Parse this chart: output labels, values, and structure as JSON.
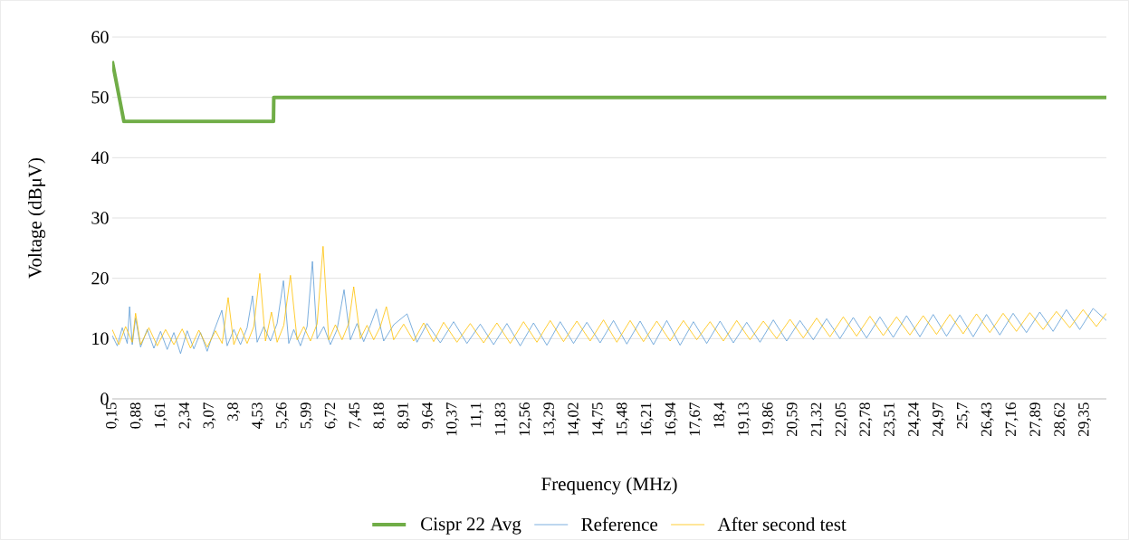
{
  "chart_data": {
    "type": "line",
    "xlabel": "Frequency (MHz)",
    "ylabel": "Voltage (dBμV)",
    "xlim": [
      0.15,
      30
    ],
    "ylim": [
      0,
      60
    ],
    "yticks": [
      0,
      10,
      20,
      30,
      40,
      50,
      60
    ],
    "xticks": [
      {
        "value": 0.15,
        "label": "0,15"
      },
      {
        "value": 0.88,
        "label": "0,88"
      },
      {
        "value": 1.61,
        "label": "1,61"
      },
      {
        "value": 2.34,
        "label": "2,34"
      },
      {
        "value": 3.07,
        "label": "3,07"
      },
      {
        "value": 3.8,
        "label": "3,8"
      },
      {
        "value": 4.53,
        "label": "4,53"
      },
      {
        "value": 5.26,
        "label": "5,26"
      },
      {
        "value": 5.99,
        "label": "5,99"
      },
      {
        "value": 6.72,
        "label": "6,72"
      },
      {
        "value": 7.45,
        "label": "7,45"
      },
      {
        "value": 8.18,
        "label": "8,18"
      },
      {
        "value": 8.91,
        "label": "8,91"
      },
      {
        "value": 9.64,
        "label": "9,64"
      },
      {
        "value": 10.37,
        "label": "10,37"
      },
      {
        "value": 11.1,
        "label": "11,1"
      },
      {
        "value": 11.83,
        "label": "11,83"
      },
      {
        "value": 12.56,
        "label": "12,56"
      },
      {
        "value": 13.29,
        "label": "13,29"
      },
      {
        "value": 14.02,
        "label": "14,02"
      },
      {
        "value": 14.75,
        "label": "14,75"
      },
      {
        "value": 15.48,
        "label": "15,48"
      },
      {
        "value": 16.21,
        "label": "16,21"
      },
      {
        "value": 16.94,
        "label": "16,94"
      },
      {
        "value": 17.67,
        "label": "17,67"
      },
      {
        "value": 18.4,
        "label": "18,4"
      },
      {
        "value": 19.13,
        "label": "19,13"
      },
      {
        "value": 19.86,
        "label": "19,86"
      },
      {
        "value": 20.59,
        "label": "20,59"
      },
      {
        "value": 21.32,
        "label": "21,32"
      },
      {
        "value": 22.05,
        "label": "22,05"
      },
      {
        "value": 22.78,
        "label": "22,78"
      },
      {
        "value": 23.51,
        "label": "23,51"
      },
      {
        "value": 24.24,
        "label": "24,24"
      },
      {
        "value": 24.97,
        "label": "24,97"
      },
      {
        "value": 25.7,
        "label": "25,7"
      },
      {
        "value": 26.43,
        "label": "26,43"
      },
      {
        "value": 27.16,
        "label": "27,16"
      },
      {
        "value": 27.89,
        "label": "27,89"
      },
      {
        "value": 28.62,
        "label": "28,62"
      },
      {
        "value": 29.35,
        "label": "29,35"
      }
    ],
    "grid": "y",
    "legend": "bottom",
    "series": [
      {
        "name": "Cispr 22 Avg",
        "color": "#70ad47",
        "x": [
          0.15,
          0.5,
          4.99,
          5,
          30
        ],
        "values": [
          56,
          46,
          46,
          50,
          50
        ]
      },
      {
        "name": "Reference",
        "color": "#5b9bd5",
        "x": [
          0.15,
          0.3,
          0.45,
          0.6,
          0.67,
          0.75,
          0.85,
          1.0,
          1.2,
          1.4,
          1.6,
          1.8,
          2.0,
          2.2,
          2.4,
          2.6,
          2.8,
          3.0,
          3.2,
          3.44,
          3.6,
          3.8,
          4.0,
          4.2,
          4.36,
          4.5,
          4.7,
          4.9,
          5.1,
          5.29,
          5.45,
          5.6,
          5.8,
          6.0,
          6.16,
          6.3,
          6.5,
          6.7,
          6.9,
          7.11,
          7.3,
          7.5,
          7.7,
          7.9,
          8.08,
          8.3,
          8.6,
          9.0,
          9.3,
          9.6,
          10,
          10.4,
          10.8,
          11.2,
          11.6,
          12,
          12.4,
          12.8,
          13.2,
          13.6,
          14,
          14.4,
          14.8,
          15.2,
          15.6,
          16,
          16.4,
          16.8,
          17.2,
          17.6,
          18,
          18.4,
          18.8,
          19.2,
          19.6,
          20,
          20.4,
          20.8,
          21.2,
          21.6,
          22,
          22.4,
          22.8,
          23.2,
          23.6,
          24,
          24.4,
          24.8,
          25.2,
          25.6,
          26,
          26.4,
          26.8,
          27.2,
          27.6,
          28,
          28.4,
          28.8,
          29.2,
          29.6,
          30
        ],
        "values": [
          10.5,
          8.8,
          11.8,
          9.2,
          15.3,
          9.0,
          13.4,
          8.6,
          11.5,
          8.4,
          11.2,
          8.2,
          11.0,
          7.5,
          11.3,
          8.3,
          11.0,
          7.9,
          11.2,
          14.7,
          8.8,
          11.5,
          9.0,
          11.8,
          17.1,
          9.4,
          12.0,
          9.6,
          12.5,
          19.6,
          9.2,
          11.5,
          8.8,
          12.0,
          22.8,
          10.0,
          12.0,
          9.0,
          11.5,
          18.1,
          9.8,
          12.5,
          9.5,
          12.2,
          14.9,
          9.6,
          12.3,
          14.1,
          9.4,
          12.5,
          9.3,
          12.8,
          9.2,
          12.4,
          9.0,
          12.5,
          8.8,
          12.6,
          8.9,
          12.8,
          9.2,
          12.7,
          9.3,
          13.0,
          9.1,
          12.9,
          9.0,
          13.0,
          8.9,
          12.8,
          9.2,
          12.9,
          9.3,
          12.7,
          9.4,
          13.1,
          9.6,
          13.0,
          9.8,
          13.3,
          10.0,
          13.5,
          10.1,
          13.6,
          10.2,
          13.8,
          10.3,
          14.0,
          10.4,
          13.9,
          10.3,
          14.0,
          10.6,
          14.2,
          11.0,
          14.4,
          11.2,
          14.8,
          11.5,
          15.0,
          13.0
        ]
      },
      {
        "name": "After second test",
        "color": "#ffc000",
        "x": [
          0.15,
          0.35,
          0.55,
          0.75,
          0.85,
          1.0,
          1.25,
          1.5,
          1.75,
          2.0,
          2.25,
          2.5,
          2.75,
          3.0,
          3.25,
          3.45,
          3.63,
          3.8,
          4.0,
          4.2,
          4.4,
          4.58,
          4.75,
          4.93,
          5.1,
          5.3,
          5.5,
          5.7,
          5.9,
          6.1,
          6.3,
          6.48,
          6.65,
          6.85,
          7.05,
          7.25,
          7.4,
          7.6,
          7.8,
          8.0,
          8.2,
          8.38,
          8.6,
          8.9,
          9.2,
          9.5,
          9.8,
          10.1,
          10.5,
          10.9,
          11.3,
          11.7,
          12.1,
          12.5,
          12.9,
          13.3,
          13.7,
          14.1,
          14.5,
          14.9,
          15.3,
          15.7,
          16.1,
          16.5,
          16.9,
          17.3,
          17.7,
          18.1,
          18.5,
          18.9,
          19.3,
          19.7,
          20.1,
          20.5,
          20.9,
          21.3,
          21.7,
          22.1,
          22.5,
          22.9,
          23.3,
          23.7,
          24.1,
          24.5,
          24.9,
          25.3,
          25.7,
          26.1,
          26.5,
          26.9,
          27.3,
          27.7,
          28.1,
          28.5,
          28.9,
          29.3,
          29.7,
          30
        ],
        "values": [
          11.5,
          9.0,
          12.0,
          9.4,
          14.2,
          9.0,
          11.8,
          8.8,
          11.5,
          9.0,
          11.6,
          8.4,
          11.4,
          8.6,
          11.3,
          9.2,
          16.8,
          9.0,
          11.8,
          9.2,
          12.0,
          20.8,
          9.6,
          14.4,
          9.4,
          12.2,
          20.5,
          9.8,
          12.0,
          9.6,
          12.4,
          25.3,
          9.8,
          12.3,
          9.8,
          12.5,
          18.6,
          10.0,
          12.2,
          9.8,
          12.0,
          15.3,
          9.8,
          12.4,
          9.6,
          12.6,
          9.5,
          12.7,
          9.4,
          12.5,
          9.3,
          12.6,
          9.2,
          12.8,
          9.4,
          13.0,
          9.5,
          12.9,
          9.6,
          13.1,
          9.4,
          13.0,
          9.5,
          12.9,
          9.6,
          13.0,
          9.8,
          12.8,
          9.6,
          13.0,
          9.8,
          12.9,
          10.0,
          13.2,
          10.1,
          13.4,
          10.3,
          13.6,
          10.4,
          13.7,
          10.5,
          13.6,
          10.6,
          13.8,
          10.7,
          14.0,
          10.8,
          14.1,
          11.0,
          14.2,
          11.2,
          14.3,
          11.5,
          14.5,
          11.8,
          14.8,
          12.0,
          14.2
        ]
      }
    ]
  }
}
